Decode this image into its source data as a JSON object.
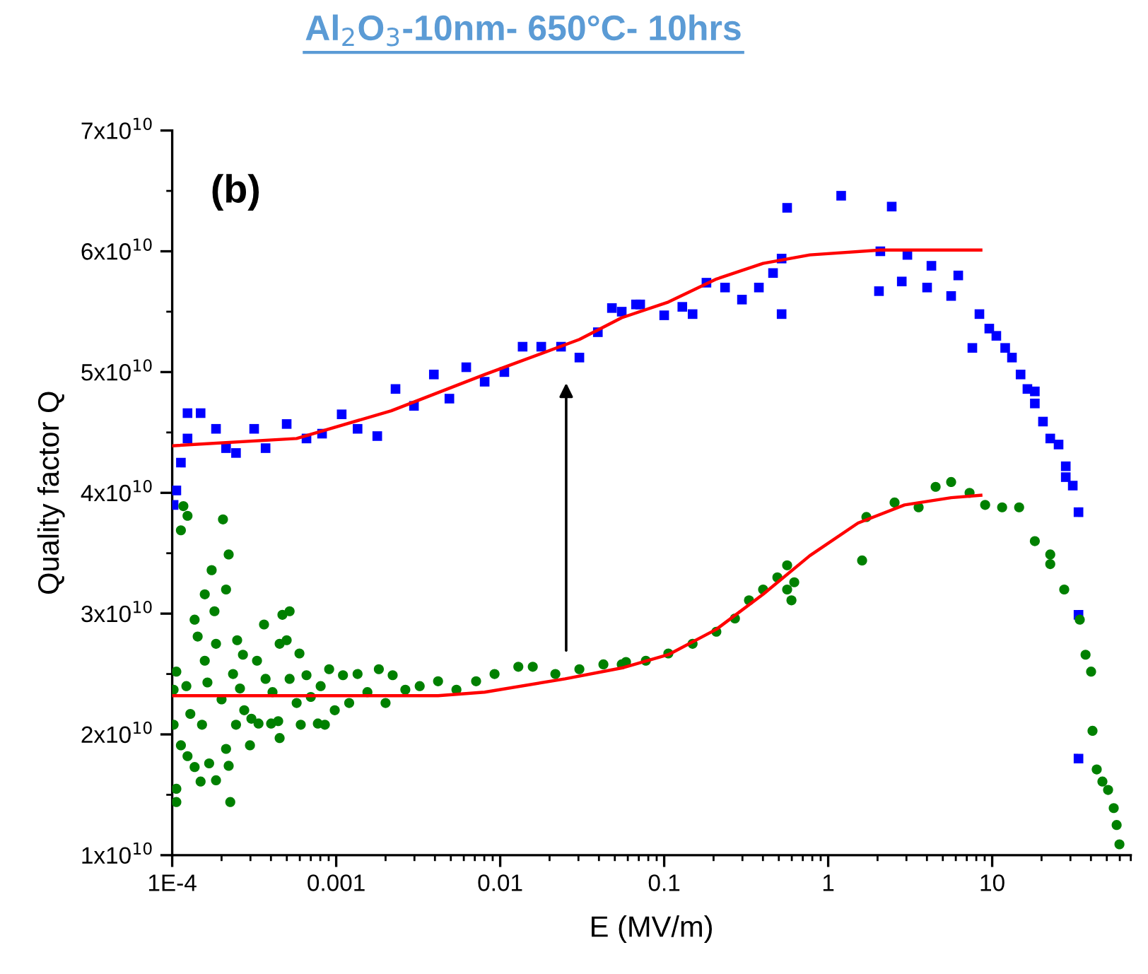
{
  "chart_data": {
    "type": "scatter",
    "title": "Al$_{2}$O$_{3}$-10nm- 650°C- 10hrs",
    "xlabel": "E (MV/m)",
    "ylabel": "Quality factor Q",
    "annotations": [
      "(b)"
    ],
    "log": "x",
    "grid": false,
    "legend": false,
    "xlim": [
      0.0001,
      70
    ],
    "xticks": [
      {
        "value": 0.0001,
        "label": "1E-4"
      },
      0.001,
      0.01,
      0.1,
      1,
      10
    ],
    "ylim": [
      10000000000.0,
      70000000000.0
    ],
    "yticks": [
      {
        "value": 10000000000.0,
        "label": "1x10$^{10}$"
      },
      {
        "value": 20000000000.0,
        "label": "2x10$^{10}$"
      },
      {
        "value": 30000000000.0,
        "label": "3x10$^{10}$"
      },
      {
        "value": 40000000000.0,
        "label": "4x10$^{10}$"
      },
      {
        "value": 50000000000.0,
        "label": "5x10$^{10}$"
      },
      {
        "value": 60000000000.0,
        "label": "6x10$^{10}$"
      },
      {
        "value": 70000000000.0,
        "label": "7x10$^{10}$"
      }
    ],
    "series": [
      {
        "marker": "square",
        "color": "#0000ff",
        "x": [
          0.000102,
          0.000106,
          0.000113,
          0.000124,
          0.000124,
          0.000149,
          0.000185,
          0.000213,
          0.000245,
          0.000316,
          0.000371,
          0.000499,
          0.000659,
          0.00082,
          0.00108,
          0.00135,
          0.00178,
          0.0023,
          0.00298,
          0.00394,
          0.0049,
          0.00621,
          0.00804,
          0.0106,
          0.0137,
          0.0178,
          0.0235,
          0.0304,
          0.0394,
          0.048,
          0.0551,
          0.0673,
          0.0714,
          0.1,
          0.129,
          0.149,
          0.181,
          0.235,
          0.298,
          0.378,
          0.461,
          0.52,
          0.52,
          0.562,
          1.2,
          2.04,
          2.08,
          2.44,
          2.81,
          3.04,
          4.01,
          4.26,
          5.62,
          6.21,
          7.57,
          8.36,
          9.6,
          10.6,
          12.0,
          13.2,
          14.9,
          16.4,
          18.2,
          18.2,
          20.4,
          22.6,
          25.4,
          28.1,
          28.1,
          31.0,
          33.6,
          33.6,
          33.6
        ],
        "values": [
          39000000000.0,
          40200000000.0,
          42500000000.0,
          44500000000.0,
          46600000000.0,
          46600000000.0,
          45300000000.0,
          43700000000.0,
          43300000000.0,
          45300000000.0,
          43700000000.0,
          45700000000.0,
          44500000000.0,
          44900000000.0,
          46500000000.0,
          45300000000.0,
          44700000000.0,
          48600000000.0,
          47200000000.0,
          49800000000.0,
          47800000000.0,
          50400000000.0,
          49200000000.0,
          50000000000.0,
          52100000000.0,
          52100000000.0,
          52100000000.0,
          51200000000.0,
          53300000000.0,
          55300000000.0,
          55000000000.0,
          55600000000.0,
          55600000000.0,
          54700000000.0,
          55400000000.0,
          54800000000.0,
          57400000000.0,
          57000000000.0,
          56000000000.0,
          57000000000.0,
          58200000000.0,
          59400000000.0,
          54800000000.0,
          63600000000.0,
          64600000000.0,
          56700000000.0,
          60000000000.0,
          63700000000.0,
          57500000000.0,
          59700000000.0,
          57000000000.0,
          58800000000.0,
          56300000000.0,
          58000000000.0,
          52000000000.0,
          54800000000.0,
          53600000000.0,
          53000000000.0,
          52000000000.0,
          51200000000.0,
          49800000000.0,
          48600000000.0,
          48400000000.0,
          47400000000.0,
          45900000000.0,
          44500000000.0,
          44000000000.0,
          42200000000.0,
          41300000000.0,
          40600000000.0,
          38400000000.0,
          29900000000.0,
          18000000000.0
        ]
      },
      {
        "marker": "circle",
        "color": "#008000",
        "x": [
          0.000102,
          0.000102,
          0.000106,
          0.000106,
          0.000106,
          0.000113,
          0.000113,
          0.000117,
          0.000122,
          0.000124,
          0.000124,
          0.000129,
          0.000137,
          0.000137,
          0.000143,
          0.000149,
          0.000152,
          0.000158,
          0.000158,
          0.000164,
          0.000168,
          0.000174,
          0.000181,
          0.000185,
          0.000185,
          0.0002,
          0.000204,
          0.000213,
          0.000213,
          0.000221,
          0.000221,
          0.000226,
          0.000235,
          0.000245,
          0.000249,
          0.000259,
          0.00027,
          0.000275,
          0.000298,
          0.000304,
          0.000329,
          0.000336,
          0.000363,
          0.000371,
          0.000401,
          0.000409,
          0.000443,
          0.000452,
          0.000452,
          0.00047,
          0.000499,
          0.00052,
          0.00052,
          0.000574,
          0.000597,
          0.000608,
          0.000659,
          0.0007,
          0.000773,
          0.000804,
          0.000853,
          0.000906,
          0.00098,
          0.0011,
          0.0012,
          0.00135,
          0.00155,
          0.00182,
          0.002,
          0.00221,
          0.00264,
          0.00323,
          0.00418,
          0.00541,
          0.00713,
          0.00924,
          0.0129,
          0.0158,
          0.0217,
          0.0304,
          0.0426,
          0.0551,
          0.0585,
          0.0773,
          0.106,
          0.149,
          0.208,
          0.27,
          0.329,
          0.401,
          0.49,
          0.562,
          0.562,
          0.597,
          0.621,
          1.61,
          1.71,
          2.54,
          3.56,
          4.52,
          5.62,
          7.28,
          9.06,
          11.5,
          14.6,
          18.2,
          22.6,
          22.6,
          27.5,
          34.2,
          37.1,
          40.1,
          40.9,
          43.4,
          47.0,
          50.9,
          55.1,
          57.4,
          59.7
        ],
        "values": [
          23700000000.0,
          20800000000.0,
          25200000000.0,
          15500000000.0,
          14400000000.0,
          19100000000.0,
          36900000000.0,
          38900000000.0,
          24000000000.0,
          38100000000.0,
          18200000000.0,
          21700000000.0,
          29500000000.0,
          17300000000.0,
          28100000000.0,
          16100000000.0,
          20800000000.0,
          31600000000.0,
          26100000000.0,
          24300000000.0,
          17600000000.0,
          33600000000.0,
          30200000000.0,
          16200000000.0,
          27500000000.0,
          22900000000.0,
          37800000000.0,
          32000000000.0,
          18800000000.0,
          34900000000.0,
          17400000000.0,
          14400000000.0,
          25000000000.0,
          20800000000.0,
          27800000000.0,
          23800000000.0,
          26600000000.0,
          22000000000.0,
          19100000000.0,
          21300000000.0,
          26100000000.0,
          20900000000.0,
          29100000000.0,
          24600000000.0,
          20900000000.0,
          23500000000.0,
          21100000000.0,
          27500000000.0,
          19700000000.0,
          29900000000.0,
          27800000000.0,
          30200000000.0,
          24600000000.0,
          22600000000.0,
          26700000000.0,
          20800000000.0,
          24900000000.0,
          23100000000.0,
          20900000000.0,
          24000000000.0,
          20800000000.0,
          25400000000.0,
          22000000000.0,
          24900000000.0,
          22600000000.0,
          25000000000.0,
          23500000000.0,
          25400000000.0,
          22600000000.0,
          24900000000.0,
          23700000000.0,
          24000000000.0,
          24400000000.0,
          23700000000.0,
          24400000000.0,
          25000000000.0,
          25600000000.0,
          25600000000.0,
          25000000000.0,
          25400000000.0,
          25800000000.0,
          25800000000.0,
          26000000000.0,
          26100000000.0,
          26700000000.0,
          27500000000.0,
          28500000000.0,
          29600000000.0,
          31100000000.0,
          32000000000.0,
          33000000000.0,
          34000000000.0,
          32000000000.0,
          31100000000.0,
          32600000000.0,
          34400000000.0,
          38000000000.0,
          39200000000.0,
          38800000000.0,
          40500000000.0,
          40900000000.0,
          40000000000.0,
          39000000000.0,
          38800000000.0,
          38800000000.0,
          36000000000.0,
          34900000000.0,
          34100000000.0,
          32000000000.0,
          29500000000.0,
          26600000000.0,
          25200000000.0,
          20300000000.0,
          17100000000.0,
          16100000000.0,
          15400000000.0,
          13900000000.0,
          12500000000.0,
          10900000000.0
        ]
      },
      {
        "type": "line",
        "marker": "none",
        "line_style": "solid",
        "color": "#ff0000",
        "x": [
          0.0001,
          0.000574,
          0.00217,
          0.00804,
          0.0304,
          0.0551,
          0.106,
          0.208,
          0.401,
          0.773,
          2.08,
          8.53
        ],
        "values": [
          43900000000.0,
          44500000000.0,
          46800000000.0,
          49800000000.0,
          52700000000.0,
          54500000000.0,
          55800000000.0,
          57700000000.0,
          59000000000.0,
          59700000000.0,
          60100000000.0,
          60100000000.0
        ]
      },
      {
        "type": "line",
        "marker": "none",
        "line_style": "solid",
        "color": "#ff0000",
        "x": [
          0.0001,
          0.00418,
          0.00804,
          0.0249,
          0.0551,
          0.106,
          0.208,
          0.401,
          0.773,
          1.52,
          2.92,
          5.62,
          8.53
        ],
        "values": [
          23200000000.0,
          23200000000.0,
          23500000000.0,
          24600000000.0,
          25500000000.0,
          26600000000.0,
          28700000000.0,
          31600000000.0,
          34800000000.0,
          37500000000.0,
          39000000000.0,
          39600000000.0,
          39800000000.0
        ]
      }
    ]
  }
}
